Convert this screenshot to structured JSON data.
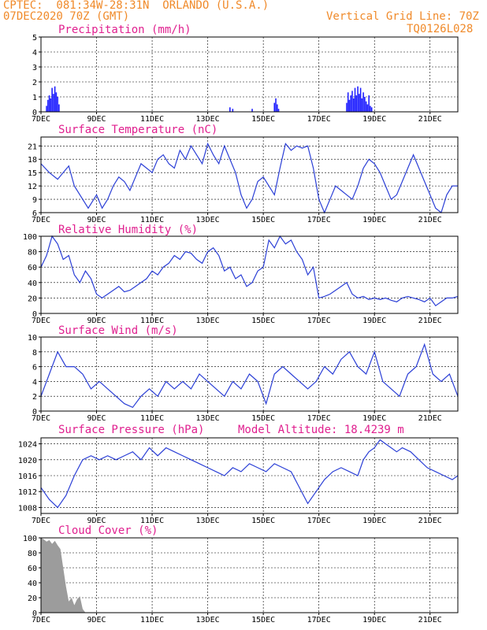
{
  "header": {
    "line1": "CPTEC:  081:34W-28:31N  ORLANDO (U.S.A.)",
    "line2": "07DEC2020 70Z (GMT)",
    "grid_note": "Vertical Grid Line: 70Z",
    "code": "TQ0126L028",
    "text_color": "#f08a2a",
    "title_color": "#e0208f"
  },
  "chart_data": [
    {
      "type": "bar",
      "title": "Precipitation (mm/h)",
      "x_ticks": [
        "7DEC",
        "9DEC",
        "11DEC",
        "13DEC",
        "15DEC",
        "17DEC",
        "19DEC",
        "21DEC"
      ],
      "y_ticks": [
        "0",
        "1",
        "2",
        "3",
        "4",
        "5"
      ],
      "ylim": [
        0,
        5
      ],
      "color": "#1f1fff",
      "x_day": [
        0.2,
        0.25,
        0.3,
        0.35,
        0.4,
        0.45,
        0.5,
        0.55,
        0.6,
        0.65,
        6.8,
        6.9,
        7.6,
        8.4,
        8.45,
        8.5,
        8.55,
        11.0,
        11.05,
        11.1,
        11.15,
        11.2,
        11.25,
        11.3,
        11.35,
        11.4,
        11.45,
        11.5,
        11.55,
        11.6,
        11.65,
        11.7,
        11.75,
        11.8,
        11.85,
        11.9
      ],
      "values": [
        0.4,
        0.8,
        1.1,
        0.9,
        1.6,
        1.2,
        1.7,
        1.3,
        1.0,
        0.5,
        0.3,
        0.2,
        0.2,
        0.6,
        0.9,
        0.5,
        0.2,
        0.6,
        1.3,
        0.8,
        1.1,
        1.4,
        0.9,
        1.6,
        1.1,
        1.7,
        1.2,
        1.6,
        0.9,
        1.3,
        1.0,
        0.7,
        0.5,
        1.1,
        0.4,
        0.3
      ]
    },
    {
      "type": "line",
      "title": "Surface Temperature (nC)",
      "x_ticks": [
        "7DEC",
        "9DEC",
        "11DEC",
        "13DEC",
        "15DEC",
        "17DEC",
        "19DEC",
        "21DEC"
      ],
      "y_ticks": [
        "6",
        "9",
        "12",
        "15",
        "18",
        "21"
      ],
      "ylim": [
        6,
        23
      ],
      "color": "#2b3fd6",
      "x_day": [
        0,
        0.3,
        0.6,
        0.8,
        1.0,
        1.2,
        1.5,
        1.7,
        1.9,
        2.0,
        2.2,
        2.4,
        2.6,
        2.8,
        3.0,
        3.2,
        3.4,
        3.6,
        3.8,
        4.0,
        4.2,
        4.4,
        4.6,
        4.8,
        5.0,
        5.2,
        5.4,
        5.6,
        5.8,
        6.0,
        6.2,
        6.4,
        6.6,
        6.8,
        7.0,
        7.2,
        7.4,
        7.6,
        7.8,
        8.0,
        8.2,
        8.4,
        8.6,
        8.8,
        9.0,
        9.2,
        9.4,
        9.6,
        9.8,
        10.0,
        10.2,
        10.4,
        10.6,
        10.8,
        11.0,
        11.2,
        11.4,
        11.6,
        11.8,
        12.0,
        12.2,
        12.4,
        12.6,
        12.8,
        13.0,
        13.2,
        13.4,
        13.6,
        13.8,
        14.0,
        14.2,
        14.4,
        14.6,
        14.8,
        15.0
      ],
      "values": [
        17,
        15,
        13.5,
        15,
        16.5,
        12,
        9,
        7,
        9,
        10,
        7,
        9,
        12,
        14,
        13,
        11,
        14,
        17,
        16,
        15,
        18,
        19,
        17,
        16,
        20,
        18,
        21,
        19,
        17,
        21.5,
        19,
        17,
        21,
        18,
        15,
        10,
        7,
        9,
        13,
        14,
        12,
        10,
        16,
        21.5,
        20,
        21,
        20.5,
        21,
        16,
        9,
        6,
        9,
        12,
        11,
        10,
        9,
        12,
        16,
        18,
        17,
        15,
        12,
        9,
        10,
        13,
        16,
        19,
        16,
        13,
        10,
        7,
        6,
        10,
        12,
        12
      ]
    },
    {
      "type": "line",
      "title": "Relative Humidity (%)",
      "x_ticks": [
        "7DEC",
        "9DEC",
        "11DEC",
        "13DEC",
        "15DEC",
        "17DEC",
        "19DEC",
        "21DEC"
      ],
      "y_ticks": [
        "0",
        "20",
        "40",
        "60",
        "80",
        "100"
      ],
      "ylim": [
        0,
        100
      ],
      "color": "#2b3fd6",
      "x_day": [
        0,
        0.2,
        0.4,
        0.6,
        0.8,
        1.0,
        1.2,
        1.4,
        1.6,
        1.8,
        2.0,
        2.2,
        2.4,
        2.6,
        2.8,
        3.0,
        3.2,
        3.4,
        3.6,
        3.8,
        4.0,
        4.2,
        4.4,
        4.6,
        4.8,
        5.0,
        5.2,
        5.4,
        5.6,
        5.8,
        6.0,
        6.2,
        6.4,
        6.6,
        6.8,
        7.0,
        7.2,
        7.4,
        7.6,
        7.8,
        8.0,
        8.2,
        8.4,
        8.6,
        8.8,
        9.0,
        9.2,
        9.4,
        9.6,
        9.8,
        10.0,
        10.2,
        10.4,
        10.6,
        10.8,
        11.0,
        11.2,
        11.4,
        11.6,
        11.8,
        12.0,
        12.2,
        12.4,
        12.6,
        12.8,
        13.0,
        13.2,
        13.4,
        13.6,
        13.8,
        14.0,
        14.2,
        14.4,
        14.6,
        14.8,
        15.0
      ],
      "values": [
        60,
        75,
        100,
        90,
        70,
        75,
        50,
        40,
        55,
        45,
        25,
        20,
        25,
        30,
        35,
        28,
        30,
        35,
        40,
        45,
        55,
        50,
        60,
        65,
        75,
        70,
        80,
        78,
        70,
        65,
        80,
        85,
        75,
        55,
        60,
        45,
        50,
        35,
        40,
        55,
        60,
        95,
        85,
        100,
        90,
        95,
        80,
        70,
        50,
        60,
        20,
        22,
        25,
        30,
        35,
        40,
        25,
        20,
        22,
        18,
        20,
        18,
        20,
        17,
        15,
        20,
        22,
        20,
        18,
        15,
        20,
        10,
        15,
        20,
        20,
        22
      ]
    },
    {
      "type": "line",
      "title": "Surface Wind (m/s)",
      "x_ticks": [
        "7DEC",
        "9DEC",
        "11DEC",
        "13DEC",
        "15DEC",
        "17DEC",
        "19DEC",
        "21DEC"
      ],
      "y_ticks": [
        "0",
        "2",
        "4",
        "6",
        "8",
        "10"
      ],
      "ylim": [
        0,
        10
      ],
      "color": "#2b3fd6",
      "x_day": [
        0,
        0.3,
        0.6,
        0.9,
        1.2,
        1.5,
        1.8,
        2.1,
        2.4,
        2.7,
        3.0,
        3.3,
        3.6,
        3.9,
        4.2,
        4.5,
        4.8,
        5.1,
        5.4,
        5.7,
        6.0,
        6.3,
        6.6,
        6.9,
        7.2,
        7.5,
        7.8,
        8.1,
        8.4,
        8.7,
        9.0,
        9.3,
        9.6,
        9.9,
        10.2,
        10.5,
        10.8,
        11.1,
        11.4,
        11.7,
        12.0,
        12.3,
        12.6,
        12.9,
        13.2,
        13.5,
        13.8,
        14.1,
        14.4,
        14.7,
        15.0
      ],
      "values": [
        2,
        5,
        8,
        6,
        6,
        5,
        3,
        4,
        3,
        2,
        1,
        0.5,
        2,
        3,
        2,
        4,
        3,
        4,
        3,
        5,
        4,
        3,
        2,
        4,
        3,
        5,
        4,
        1,
        5,
        6,
        5,
        4,
        3,
        4,
        6,
        5,
        7,
        8,
        6,
        5,
        8,
        4,
        3,
        2,
        5,
        6,
        9,
        5,
        4,
        5,
        2
      ]
    },
    {
      "type": "line",
      "title": "Surface Pressure (hPa)",
      "annotation": "Model Altitude: 18.4239 m",
      "x_ticks": [
        "7DEC",
        "9DEC",
        "11DEC",
        "13DEC",
        "15DEC",
        "17DEC",
        "19DEC",
        "21DEC"
      ],
      "y_ticks": [
        "1008",
        "1012",
        "1016",
        "1020",
        "1024"
      ],
      "ylim": [
        1006.5,
        1025.5
      ],
      "color": "#2b3fd6",
      "x_day": [
        0,
        0.3,
        0.6,
        0.9,
        1.2,
        1.5,
        1.8,
        2.1,
        2.4,
        2.7,
        3.0,
        3.3,
        3.6,
        3.9,
        4.2,
        4.5,
        4.8,
        5.1,
        5.4,
        5.7,
        6.0,
        6.3,
        6.6,
        6.9,
        7.2,
        7.5,
        7.8,
        8.1,
        8.4,
        8.7,
        9.0,
        9.3,
        9.6,
        9.9,
        10.2,
        10.5,
        10.8,
        11.1,
        11.4,
        11.6,
        11.8,
        12.0,
        12.2,
        12.4,
        12.6,
        12.8,
        13.0,
        13.3,
        13.6,
        13.9,
        14.2,
        14.5,
        14.8,
        15.0
      ],
      "values": [
        1013,
        1010,
        1008,
        1011,
        1016,
        1020,
        1021,
        1020,
        1021,
        1020,
        1021,
        1022,
        1020,
        1023,
        1021,
        1023,
        1022,
        1021,
        1020,
        1019,
        1018,
        1017,
        1016,
        1018,
        1017,
        1019,
        1018,
        1017,
        1019,
        1018,
        1017,
        1013,
        1009,
        1012,
        1015,
        1017,
        1018,
        1017,
        1016,
        1020,
        1022,
        1023,
        1025,
        1024,
        1023,
        1022,
        1023,
        1022,
        1020,
        1018,
        1017,
        1016,
        1015,
        1016
      ]
    },
    {
      "type": "area",
      "title": "Cloud Cover (%)",
      "x_ticks": [
        "7DEC",
        "9DEC",
        "11DEC",
        "13DEC",
        "15DEC",
        "17DEC",
        "19DEC",
        "21DEC"
      ],
      "y_ticks": [
        "0",
        "20",
        "40",
        "60",
        "80",
        "100"
      ],
      "ylim": [
        0,
        100
      ],
      "color": "#9c9c9c",
      "x_day": [
        0,
        0.1,
        0.2,
        0.3,
        0.4,
        0.5,
        0.6,
        0.7,
        0.8,
        0.9,
        1.0,
        1.1,
        1.2,
        1.3,
        1.4,
        1.5,
        1.6,
        1.7,
        1.8,
        1.9,
        2.0,
        2.1,
        2.2,
        2.3,
        2.4,
        2.5,
        2.6,
        2.7,
        2.8,
        2.9,
        3.0,
        3.1,
        3.2,
        3.3,
        3.4,
        3.5,
        3.6,
        3.7,
        3.8,
        3.9,
        4.0,
        4.1,
        4.2,
        4.3,
        4.4,
        4.5,
        4.6,
        4.7,
        4.8,
        4.9,
        5.0,
        5.1,
        5.2,
        5.3,
        5.4,
        5.5,
        5.6,
        5.7,
        5.8,
        5.9,
        6.0,
        6.1,
        6.2,
        6.3,
        6.4,
        6.5,
        6.6,
        6.7,
        6.8,
        6.9,
        7.0,
        7.1,
        7.2,
        7.3,
        7.4,
        7.5,
        7.6,
        7.7,
        7.8,
        7.9,
        8.0,
        8.1,
        8.2,
        8.3,
        8.4,
        8.5,
        8.6,
        8.7,
        8.8,
        8.9,
        9.0,
        9.1,
        9.2,
        9.3,
        9.4,
        9.5,
        9.6,
        9.7,
        9.8,
        9.9,
        10.0,
        10.1,
        10.2,
        10.3,
        10.4,
        10.5,
        10.6,
        10.7,
        10.8,
        10.9,
        11.0,
        11.1,
        11.2,
        11.3,
        11.4,
        11.5,
        11.6,
        11.7,
        11.8,
        11.9,
        12.0,
        12.1,
        12.2,
        12.3,
        12.4,
        12.5,
        12.6,
        12.7,
        12.8,
        12.9,
        13.0,
        13.1,
        13.2,
        13.3,
        13.4,
        13.5,
        13.6,
        13.7,
        13.8,
        13.9,
        14.0,
        14.1,
        14.2,
        14.3,
        14.4,
        14.5,
        14.6,
        14.7,
        14.8,
        14.9,
        15.0
      ],
      "values": [
        100,
        98,
        95,
        97,
        92,
        96,
        90,
        85,
        60,
        35,
        15,
        20,
        10,
        18,
        22,
        5,
        0,
        0,
        0,
        0,
        0,
        0,
        0,
        0,
        0,
        0,
        0,
        0,
        0,
        0,
        0,
        0,
        0,
        0,
        0,
        0,
        0,
        0,
        0,
        0,
        0,
        0,
        0,
        0,
        0,
        0,
        0,
        0,
        0,
        0,
        0,
        0,
        0,
        0,
        0,
        0,
        0,
        0,
        0,
        0,
        0,
        0,
        0,
        0,
        0,
        0,
        0,
        0,
        0,
        0,
        0,
        0,
        0,
        0,
        0,
        0,
        0,
        0,
        0,
        0,
        0,
        0,
        0,
        0,
        0,
        0,
        0,
        0,
        0,
        0,
        0,
        0,
        0,
        0,
        0,
        0,
        0,
        0,
        0,
        0,
        0,
        0,
        0,
        0,
        0,
        0,
        0,
        0,
        0,
        0,
        0,
        0,
        0,
        0,
        0,
        0,
        0,
        0,
        0,
        0,
        0,
        0,
        0,
        0,
        0,
        0,
        0,
        0,
        0,
        0,
        0,
        0,
        0,
        0,
        0,
        0,
        0,
        0,
        0,
        0,
        0,
        0,
        0,
        0,
        0,
        0,
        0,
        0,
        0,
        0,
        0
      ]
    }
  ]
}
